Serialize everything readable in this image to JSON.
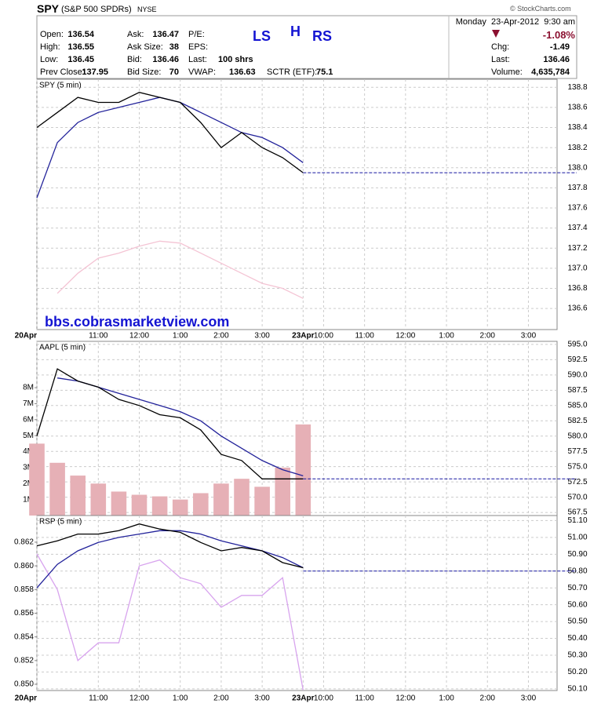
{
  "header": {
    "symbol": "SPY",
    "name": "(S&P 500 SPDRs)",
    "exchange": "NYSE",
    "credit": "© StockCharts.com",
    "date": "Monday  23-Apr-2012  9:30 am",
    "change_pct": "-1.08%",
    "fields": [
      {
        "label": "Open:",
        "value": "136.54"
      },
      {
        "label": "High:",
        "value": "136.55"
      },
      {
        "label": "Low:",
        "value": "136.45"
      },
      {
        "label": "Prev Close:",
        "value": "137.95"
      },
      {
        "label": "Ask:",
        "value": "136.47"
      },
      {
        "label": "Ask Size:",
        "value": "38"
      },
      {
        "label": "Bid:",
        "value": "136.46"
      },
      {
        "label": "Bid Size:",
        "value": "70"
      },
      {
        "label": "P/E:"
      },
      {
        "label": "EPS:"
      },
      {
        "label": "Last:",
        "value": "100 shrs"
      },
      {
        "label": "VWAP:",
        "value": "136.63"
      },
      {
        "label": "SCTR (ETF):",
        "value": "75.1"
      },
      {
        "label": "Chg:",
        "value": "-1.49"
      },
      {
        "label": "Last:",
        "value": "136.46"
      },
      {
        "label": "Volume:",
        "value": "4,635,784"
      }
    ],
    "annotations": [
      "LS",
      "H",
      "RS"
    ],
    "watermark": "bbs.cobrasmarketview.com"
  },
  "chart_data": [
    {
      "type": "line",
      "title": "SPY (5 min)",
      "x": [
        0,
        0.5,
        1,
        1.5,
        2,
        2.5,
        3,
        3.5,
        4,
        4.5,
        5,
        5.5,
        6,
        6.5
      ],
      "series": [
        {
          "color": "#f4c4d4",
          "values": [
            null,
            136.75,
            136.95,
            137.1,
            137.15,
            137.22,
            137.27,
            137.25,
            137.15,
            137.05,
            136.95,
            136.85,
            136.8,
            136.7
          ]
        },
        {
          "color": "#22229a",
          "values": [
            137.7,
            138.25,
            138.45,
            138.55,
            138.6,
            138.65,
            138.7,
            138.65,
            138.55,
            138.45,
            138.35,
            138.3,
            138.2,
            138.05
          ]
        },
        {
          "color": "#000000",
          "values": [
            138.4,
            138.55,
            138.7,
            138.65,
            138.65,
            138.75,
            138.7,
            138.65,
            138.45,
            138.2,
            138.35,
            138.2,
            138.1,
            137.95
          ]
        }
      ],
      "last_value": 137.95,
      "xlim": [
        0,
        12.7
      ],
      "xticks": [
        {
          "value": 0,
          "label": "20Apr"
        },
        {
          "value": 1.5,
          "label": "11:00"
        },
        {
          "value": 2.5,
          "label": "12:00"
        },
        {
          "value": 3.5,
          "label": "1:00"
        },
        {
          "value": 4.5,
          "label": "2:00"
        },
        {
          "value": 5.5,
          "label": "3:00"
        },
        {
          "value": 6.5,
          "label": "23Apr"
        },
        {
          "value": 7,
          "label": "10:00"
        },
        {
          "value": 8,
          "label": "11:00"
        },
        {
          "value": 9,
          "label": "12:00"
        },
        {
          "value": 10,
          "label": "1:00"
        },
        {
          "value": 11,
          "label": "2:00"
        },
        {
          "value": 12,
          "label": "3:00"
        }
      ],
      "ylim": [
        136.39,
        138.88
      ],
      "yticks": [
        {
          "value": 136.6,
          "label": "136.6"
        },
        {
          "value": 136.8,
          "label": "136.8"
        },
        {
          "value": 137,
          "label": "137.0"
        },
        {
          "value": 137.2,
          "label": "137.2"
        },
        {
          "value": 137.4,
          "label": "137.4"
        },
        {
          "value": 137.6,
          "label": "137.6"
        },
        {
          "value": 137.8,
          "label": "137.8"
        },
        {
          "value": 138,
          "label": "138.0"
        },
        {
          "value": 138.2,
          "label": "138.2"
        },
        {
          "value": 138.4,
          "label": "138.4"
        },
        {
          "value": 138.6,
          "label": "138.6"
        },
        {
          "value": 138.8,
          "label": "138.8"
        }
      ],
      "grid": true
    },
    {
      "type": "line",
      "title": "AAPL (5 min)",
      "x": [
        0,
        0.5,
        1,
        1.5,
        2,
        2.5,
        3,
        3.5,
        4,
        4.5,
        5,
        5.5,
        6,
        6.5
      ],
      "series": [
        {
          "type": "bar",
          "axis": "y2",
          "color": "#e6b0b6",
          "values": [
            4500000,
            3300000,
            2500000,
            2000000,
            1500000,
            1300000,
            1200000,
            1000000,
            1400000,
            2000000,
            2300000,
            1800000,
            3000000,
            5700000
          ]
        },
        {
          "color": "#22229a",
          "values": [
            null,
            589.5,
            589,
            588,
            587,
            586,
            585,
            584,
            582.5,
            580,
            578,
            576,
            574.5,
            573.5
          ]
        },
        {
          "color": "#000000",
          "values": [
            580,
            591,
            589,
            588,
            586,
            585,
            583.5,
            583,
            581,
            577,
            576,
            573,
            573,
            573
          ]
        }
      ],
      "last_value": 573,
      "xlim": [
        0,
        12.7
      ],
      "ylim": [
        567,
        595.5
      ],
      "yticks": [
        {
          "value": 567.5,
          "label": "567.5"
        },
        {
          "value": 570,
          "label": "570.0"
        },
        {
          "value": 572.5,
          "label": "572.5"
        },
        {
          "value": 575,
          "label": "575.0"
        },
        {
          "value": 577.5,
          "label": "577.5"
        },
        {
          "value": 580,
          "label": "580.0"
        },
        {
          "value": 582.5,
          "label": "582.5"
        },
        {
          "value": 585,
          "label": "585.0"
        },
        {
          "value": 587.5,
          "label": "587.5"
        },
        {
          "value": 590,
          "label": "590.0"
        },
        {
          "value": 592.5,
          "label": "592.5"
        },
        {
          "value": 595,
          "label": "595.0"
        }
      ],
      "y2lim": [
        0,
        10900000
      ],
      "y2ticks": [
        {
          "value": 1000000,
          "label": "1M"
        },
        {
          "value": 2000000,
          "label": "2M"
        },
        {
          "value": 3000000,
          "label": "3M"
        },
        {
          "value": 4000000,
          "label": "4M"
        },
        {
          "value": 5000000,
          "label": "5M"
        },
        {
          "value": 6000000,
          "label": "6M"
        },
        {
          "value": 7000000,
          "label": "7M"
        },
        {
          "value": 8000000,
          "label": "8M"
        }
      ],
      "grid": true
    },
    {
      "type": "line",
      "title": "RSP (5 min)",
      "x": [
        0,
        0.5,
        1,
        1.5,
        2,
        2.5,
        3,
        3.5,
        4,
        4.5,
        5,
        5.5,
        6,
        6.5
      ],
      "series": [
        {
          "axis": "y2",
          "color": "#d8a4ee",
          "values": [
            0.861,
            0.858,
            0.852,
            0.8535,
            0.8535,
            0.86,
            0.8605,
            0.859,
            0.8585,
            0.8565,
            0.8575,
            0.8575,
            0.859,
            0.8495
          ]
        },
        {
          "color": "#22229a",
          "values": [
            50.7,
            50.84,
            50.92,
            50.97,
            51,
            51.02,
            51.04,
            51.04,
            51.02,
            50.98,
            50.95,
            50.92,
            50.88,
            50.82
          ]
        },
        {
          "color": "#000000",
          "values": [
            50.95,
            50.98,
            51.02,
            51.02,
            51.04,
            51.08,
            51.05,
            51.03,
            50.97,
            50.92,
            50.94,
            50.92,
            50.85,
            50.82
          ]
        }
      ],
      "last_value": 50.8,
      "xlim": [
        0,
        12.7
      ],
      "xticks": [
        {
          "value": 0,
          "label": "20Apr"
        },
        {
          "value": 1.5,
          "label": "11:00"
        },
        {
          "value": 2.5,
          "label": "12:00"
        },
        {
          "value": 3.5,
          "label": "1:00"
        },
        {
          "value": 4.5,
          "label": "2:00"
        },
        {
          "value": 5.5,
          "label": "3:00"
        },
        {
          "value": 6.5,
          "label": "23Apr"
        },
        {
          "value": 7,
          "label": "10:00"
        },
        {
          "value": 8,
          "label": "11:00"
        },
        {
          "value": 9,
          "label": "12:00"
        },
        {
          "value": 10,
          "label": "1:00"
        },
        {
          "value": 11,
          "label": "2:00"
        },
        {
          "value": 12,
          "label": "3:00"
        }
      ],
      "ylim": [
        50.09,
        51.13
      ],
      "yticks": [
        {
          "value": 50.1,
          "label": "50.10"
        },
        {
          "value": 50.2,
          "label": "50.20"
        },
        {
          "value": 50.3,
          "label": "50.30"
        },
        {
          "value": 50.4,
          "label": "50.40"
        },
        {
          "value": 50.5,
          "label": "50.50"
        },
        {
          "value": 50.6,
          "label": "50.60"
        },
        {
          "value": 50.7,
          "label": "50.70"
        },
        {
          "value": 50.8,
          "label": "50.80"
        },
        {
          "value": 50.9,
          "label": "50.90"
        },
        {
          "value": 51,
          "label": "51.00"
        },
        {
          "value": 51.1,
          "label": "51.10"
        }
      ],
      "y2lim": [
        0.84947,
        0.86425
      ],
      "y2ticks": [
        {
          "value": 0.85,
          "label": "0.850"
        },
        {
          "value": 0.852,
          "label": "0.852"
        },
        {
          "value": 0.854,
          "label": "0.854"
        },
        {
          "value": 0.856,
          "label": "0.856"
        },
        {
          "value": 0.858,
          "label": "0.858"
        },
        {
          "value": 0.86,
          "label": "0.860"
        },
        {
          "value": 0.862,
          "label": "0.862"
        }
      ],
      "grid": true
    }
  ]
}
